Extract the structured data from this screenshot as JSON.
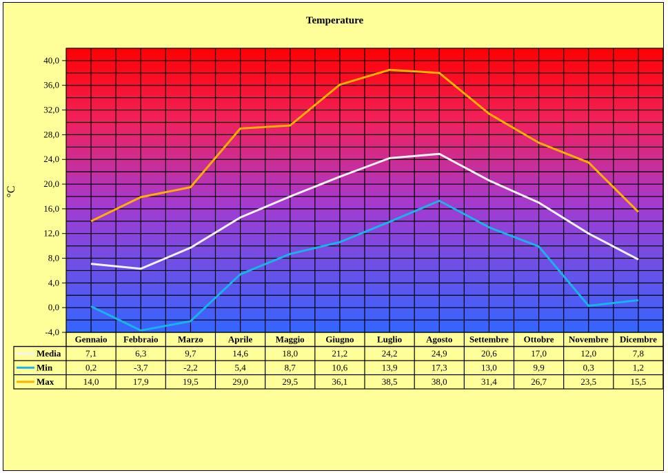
{
  "chart_data": {
    "type": "line",
    "title": "Temperature",
    "ylabel": "°C",
    "xlabel": "",
    "ylim": [
      -4,
      42
    ],
    "yticks": [
      -4.0,
      0.0,
      4.0,
      8.0,
      12.0,
      16.0,
      20.0,
      24.0,
      28.0,
      32.0,
      36.0,
      40.0
    ],
    "ytick_labels": [
      "-4,0",
      "0,0",
      "4,0",
      "8,0",
      "12,0",
      "16,0",
      "20,0",
      "24,0",
      "28,0",
      "32,0",
      "36,0",
      "40,0"
    ],
    "grid": true,
    "legend": "data-table",
    "categories": [
      "Gennaio",
      "Febbraio",
      "Marzo",
      "Aprile",
      "Maggio",
      "Giugno",
      "Luglio",
      "Agosto",
      "Settembre",
      "Ottobre",
      "Novembre",
      "Dicembre"
    ],
    "series": [
      {
        "name": "Media",
        "color": "#f2f2f2",
        "values": [
          7.1,
          6.3,
          9.7,
          14.6,
          18.0,
          21.2,
          24.2,
          24.9,
          20.6,
          17.0,
          12.0,
          7.8
        ],
        "labels": [
          "7,1",
          "6,3",
          "9,7",
          "14,6",
          "18,0",
          "21,2",
          "24,2",
          "24,9",
          "20,6",
          "17,0",
          "12,0",
          "7,8"
        ]
      },
      {
        "name": "Min",
        "color": "#1ab2e8",
        "values": [
          0.2,
          -3.7,
          -2.2,
          5.4,
          8.7,
          10.6,
          13.9,
          17.3,
          13.0,
          9.9,
          0.3,
          1.2
        ],
        "labels": [
          "0,2",
          "-3,7",
          "-2,2",
          "5,4",
          "8,7",
          "10,6",
          "13,9",
          "17,3",
          "13,0",
          "9,9",
          "0,3",
          "1,2"
        ]
      },
      {
        "name": "Max",
        "color": "#ffb000",
        "values": [
          14.0,
          17.9,
          19.5,
          29.0,
          29.5,
          36.1,
          38.5,
          38.0,
          31.4,
          26.7,
          23.5,
          15.5
        ],
        "labels": [
          "14,0",
          "17,9",
          "19,5",
          "29,0",
          "29,5",
          "36,1",
          "38,5",
          "38,0",
          "31,4",
          "26,7",
          "23,5",
          "15,5"
        ]
      }
    ],
    "background_gradient": {
      "top": "#ff0000",
      "bottom": "#3366ff"
    }
  }
}
